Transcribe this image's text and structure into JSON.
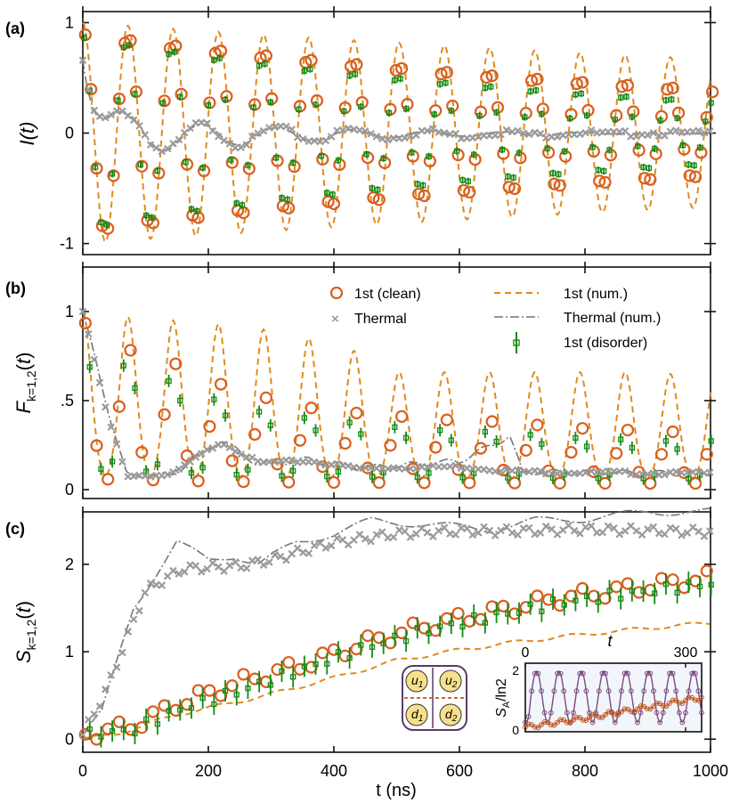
{
  "figure": {
    "x_label": "t (ns)",
    "x_ticks": [
      "0",
      "200",
      "400",
      "600",
      "800",
      "1000"
    ]
  },
  "legend": {
    "clean": "1st (clean)",
    "thermal": "Thermal",
    "num": "1st (num.)",
    "thermal_num": "Thermal (num.)",
    "disorder": "1st (disorder)"
  },
  "colors": {
    "clean": "#d95f1e",
    "num": "#e08a1c",
    "thermal": "#9a9a9a",
    "thermal_num": "#777777",
    "disorder": "#138a13",
    "inset_top": "#7b4a7d",
    "inset_bottom": "#c0541e",
    "box_fill": "#f7e08a",
    "box_border": "#5a3a6a",
    "inset_bg": "#f2f6fb"
  },
  "chart_data": [
    {
      "panel": "(a)",
      "type": "line",
      "ylabel": "I(t)",
      "yticks": [
        "-1",
        "0",
        "1"
      ],
      "ylim": [
        -1.1,
        1.1
      ],
      "xlim": [
        0,
        1000
      ],
      "series": [
        {
          "name": "1st (num.)",
          "model": "damped_cos",
          "amplitude": 1.0,
          "period": 72,
          "decay_tau": 2500,
          "phase_deg": 0
        },
        {
          "name": "1st (clean)",
          "model": "damped_cos",
          "amplitude": 0.95,
          "period": 72,
          "decay_tau": 1200,
          "phase_deg": 0,
          "sample_step": 9
        },
        {
          "name": "1st (disorder)",
          "model": "damped_cos",
          "amplitude": 0.92,
          "period": 72,
          "decay_tau": 900,
          "phase_deg": 10,
          "sample_step": 9
        },
        {
          "name": "Thermal",
          "model": "thermal_I",
          "sample_step": 9
        },
        {
          "name": "Thermal (num.)",
          "model": "thermal_I"
        }
      ]
    },
    {
      "panel": "(b)",
      "type": "line",
      "ylabel": "F_{k=1,2}(t)",
      "yticks": [
        "0",
        ".5",
        "1"
      ],
      "ylim": [
        -0.05,
        1.25
      ],
      "xlim": [
        0,
        1000
      ],
      "series": [
        {
          "name": "1st (num.)",
          "peaks": [
            1.0,
            0.97,
            0.95,
            0.93,
            0.9,
            0.85,
            0.78,
            0.66,
            0.66,
            0.66,
            0.66,
            0.66,
            0.66,
            0.65
          ],
          "period": 72,
          "baseline": 0.05
        },
        {
          "name": "1st (clean)",
          "peaks": [
            0.98,
            0.82,
            0.74,
            0.62,
            0.54,
            0.48,
            0.45,
            0.43,
            0.41,
            0.4,
            0.38,
            0.36,
            0.35,
            0.34
          ],
          "period": 72,
          "baseline": 0.02
        },
        {
          "name": "1st (disorder)",
          "peaks": [
            0.97,
            0.8,
            0.7,
            0.58,
            0.5,
            0.46,
            0.43,
            0.4,
            0.38,
            0.37,
            0.35,
            0.33,
            0.32,
            0.31
          ],
          "period": 72,
          "baseline": 0.04
        },
        {
          "name": "Thermal",
          "values_at": [
            [
              0,
              1.0
            ],
            [
              40,
              0.4
            ],
            [
              70,
              0.08
            ],
            [
              140,
              0.08
            ],
            [
              220,
              0.27
            ],
            [
              280,
              0.15
            ],
            [
              360,
              0.16
            ],
            [
              440,
              0.12
            ],
            [
              600,
              0.13
            ],
            [
              700,
              0.1
            ],
            [
              1000,
              0.09
            ]
          ]
        },
        {
          "name": "Thermal (num.)",
          "values_at": [
            [
              0,
              1.0
            ],
            [
              40,
              0.45
            ],
            [
              70,
              0.08
            ],
            [
              140,
              0.08
            ],
            [
              220,
              0.28
            ],
            [
              280,
              0.14
            ],
            [
              360,
              0.17
            ],
            [
              440,
              0.12
            ],
            [
              600,
              0.16
            ],
            [
              680,
              0.3
            ],
            [
              700,
              0.1
            ],
            [
              1000,
              0.09
            ]
          ]
        }
      ]
    },
    {
      "panel": "(c)",
      "type": "line",
      "ylabel": "S_{k=1,2}(t)",
      "yticks": [
        "0",
        "1",
        "2"
      ],
      "ylim": [
        -0.15,
        2.6
      ],
      "xlim": [
        0,
        1000
      ],
      "series": [
        {
          "name": "Thermal (num.)",
          "values_at": [
            [
              0,
              0.05
            ],
            [
              30,
              0.3
            ],
            [
              80,
              1.5
            ],
            [
              150,
              2.25
            ],
            [
              200,
              2.05
            ],
            [
              240,
              2.1
            ],
            [
              280,
              2.0
            ],
            [
              340,
              2.25
            ],
            [
              400,
              2.35
            ],
            [
              460,
              2.5
            ],
            [
              560,
              2.45
            ],
            [
              650,
              2.4
            ],
            [
              720,
              2.5
            ],
            [
              800,
              2.52
            ],
            [
              900,
              2.6
            ],
            [
              1000,
              2.6
            ]
          ]
        },
        {
          "name": "Thermal",
          "values_at": [
            [
              0,
              0.05
            ],
            [
              40,
              0.6
            ],
            [
              100,
              1.7
            ],
            [
              160,
              1.95
            ],
            [
              250,
              1.98
            ],
            [
              300,
              2.05
            ],
            [
              400,
              2.25
            ],
            [
              500,
              2.35
            ],
            [
              600,
              2.38
            ],
            [
              700,
              2.38
            ],
            [
              800,
              2.4
            ],
            [
              1000,
              2.37
            ]
          ]
        },
        {
          "name": "1st (clean)",
          "values_at": [
            [
              0,
              0.05
            ],
            [
              80,
              0.15
            ],
            [
              150,
              0.4
            ],
            [
              250,
              0.65
            ],
            [
              350,
              0.85
            ],
            [
              450,
              1.1
            ],
            [
              550,
              1.3
            ],
            [
              650,
              1.45
            ],
            [
              750,
              1.6
            ],
            [
              850,
              1.7
            ],
            [
              1000,
              1.85
            ]
          ]
        },
        {
          "name": "1st (disorder)",
          "values_at": [
            [
              0,
              0.05
            ],
            [
              80,
              0.1
            ],
            [
              150,
              0.33
            ],
            [
              250,
              0.55
            ],
            [
              350,
              0.8
            ],
            [
              450,
              1.05
            ],
            [
              550,
              1.25
            ],
            [
              650,
              1.4
            ],
            [
              750,
              1.55
            ],
            [
              850,
              1.65
            ],
            [
              1000,
              1.78
            ]
          ]
        },
        {
          "name": "1st (num.)",
          "values_at": [
            [
              0,
              0.0
            ],
            [
              50,
              0.05
            ],
            [
              150,
              0.28
            ],
            [
              280,
              0.48
            ],
            [
              400,
              0.7
            ],
            [
              500,
              0.9
            ],
            [
              600,
              1.02
            ],
            [
              700,
              1.12
            ],
            [
              800,
              1.2
            ],
            [
              900,
              1.27
            ],
            [
              1000,
              1.33
            ]
          ]
        }
      ]
    },
    {
      "panel": "(c) inset",
      "type": "line",
      "xlabel": "t",
      "ylabel": "S_A/ln2",
      "xticks": [
        "0",
        "300"
      ],
      "yticks": [
        "0",
        "2"
      ],
      "xlim": [
        0,
        330
      ],
      "ylim": [
        -0.1,
        2.1
      ],
      "series": [
        {
          "name": "upper",
          "model": "osc",
          "period": 42,
          "low": 0.2,
          "high": 1.85
        },
        {
          "name": "lower",
          "values_at": [
            [
              0,
              0.05
            ],
            [
              100,
              0.3
            ],
            [
              200,
              0.6
            ],
            [
              330,
              1.0
            ]
          ]
        }
      ]
    }
  ],
  "inset_labels": {
    "u1": "u",
    "u1s": "1",
    "u2": "u",
    "u2s": "2",
    "d1": "d",
    "d1s": "1",
    "d2": "d",
    "d2s": "2"
  }
}
